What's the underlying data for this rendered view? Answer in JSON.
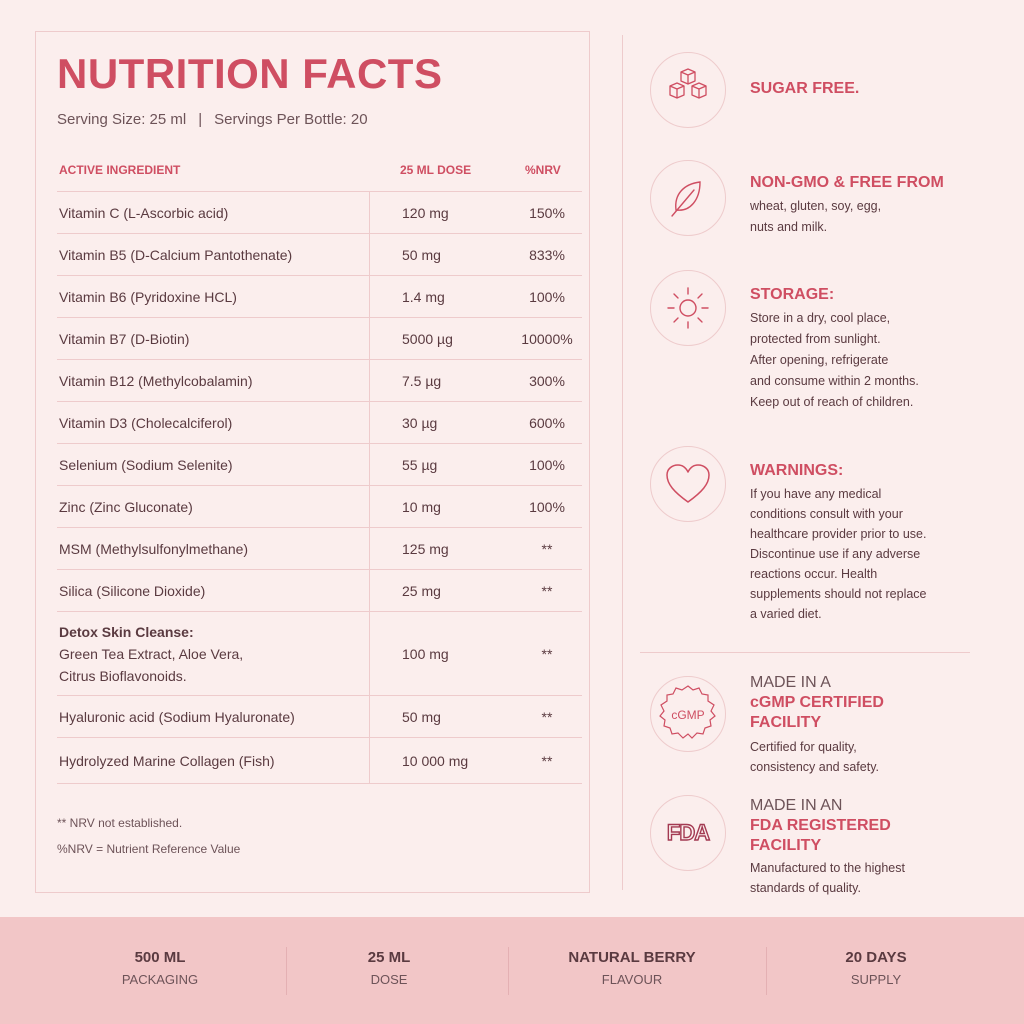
{
  "facts": {
    "title": "NUTRITION FACTS",
    "serving_size": "Serving Size: 25 ml",
    "separator": "|",
    "servings_per": "Servings Per Bottle: 20",
    "headers": {
      "ingredient": "ACTIVE INGREDIENT",
      "dose": "25 ML DOSE",
      "nrv": "%NRV"
    },
    "rows": [
      {
        "name": "Vitamin C (L-Ascorbic acid)",
        "dose": "120 mg",
        "nrv": "150%"
      },
      {
        "name": "Vitamin B5 (D-Calcium Pantothenate)",
        "dose": "50 mg",
        "nrv": "833%"
      },
      {
        "name": "Vitamin B6 (Pyridoxine HCL)",
        "dose": "1.4 mg",
        "nrv": "100%"
      },
      {
        "name": "Vitamin B7 (D-Biotin)",
        "dose": "5000 µg",
        "nrv": "10000%"
      },
      {
        "name": "Vitamin B12 (Methylcobalamin)",
        "dose": "7.5 µg",
        "nrv": "300%"
      },
      {
        "name": "Vitamin D3 (Cholecalciferol)",
        "dose": "30 µg",
        "nrv": "600%"
      },
      {
        "name": "Selenium (Sodium Selenite)",
        "dose": "55 µg",
        "nrv": "100%"
      },
      {
        "name": "Zinc (Zinc Gluconate)",
        "dose": "10 mg",
        "nrv": "100%"
      },
      {
        "name": "MSM (Methylsulfonylmethane)",
        "dose": "125 mg",
        "nrv": "**"
      },
      {
        "name": "Silica (Silicone Dioxide)",
        "dose": "25 mg",
        "nrv": "**"
      }
    ],
    "detox": {
      "title": "Detox Skin Cleanse:",
      "line1": "Green Tea Extract, Aloe Vera,",
      "line2": "Citrus Bioflavonoids.",
      "dose": "100 mg",
      "nrv": "**"
    },
    "rows2": [
      {
        "name": "Hyaluronic acid (Sodium Hyaluronate)",
        "dose": "50 mg",
        "nrv": "**"
      },
      {
        "name": "Hydrolyzed Marine Collagen (Fish)",
        "dose": "10 000 mg",
        "nrv": "**"
      }
    ],
    "note1": "** NRV not established.",
    "note2": "%NRV = Nutrient Reference Value"
  },
  "features": {
    "sugar": {
      "icon": "sugar-cubes-icon",
      "title": "SUGAR FREE."
    },
    "nongmo": {
      "icon": "leaf-icon",
      "title": "NON-GMO & FREE FROM",
      "body1": "wheat, gluten, soy, egg,",
      "body2": "nuts and milk."
    },
    "storage": {
      "icon": "sun-icon",
      "title": "STORAGE:",
      "lines": [
        "Store in a dry, cool place,",
        "protected from sunlight.",
        "After opening, refrigerate",
        "and consume within 2 months.",
        "Keep out of reach of children."
      ]
    },
    "warnings": {
      "icon": "heart-icon",
      "title": "WARNINGS:",
      "lines": [
        "If you have any medical",
        "conditions consult with your",
        "healthcare provider prior to use.",
        "Discontinue use if any adverse",
        "reactions occur. Health",
        "supplements should not replace",
        "a varied diet."
      ]
    },
    "cgmp": {
      "icon": "cgmp-badge-icon",
      "badge": "cGMP",
      "pre": "MADE IN A",
      "title1": "cGMP CERTIFIED",
      "title2": "FACILITY",
      "body1": "Certified for quality,",
      "body2": "consistency and safety."
    },
    "fda": {
      "icon": "fda-logo-icon",
      "badge": "FDA",
      "pre": "MADE IN AN",
      "title1": "FDA REGISTERED",
      "title2": "FACILITY",
      "body1": "Manufactured to the highest",
      "body2": "standards of quality."
    }
  },
  "footer": [
    {
      "value": "500 ML",
      "label": "PACKAGING"
    },
    {
      "value": "25 ML",
      "label": "DOSE"
    },
    {
      "value": "NATURAL BERRY",
      "label": "FLAVOUR"
    },
    {
      "value": "20 DAYS",
      "label": "SUPPLY"
    }
  ],
  "colors": {
    "accent": "#cf4e62",
    "background": "#fbeeed",
    "footer": "#f2c6c7",
    "text": "#5a3a40",
    "line": "#eecbcc"
  }
}
